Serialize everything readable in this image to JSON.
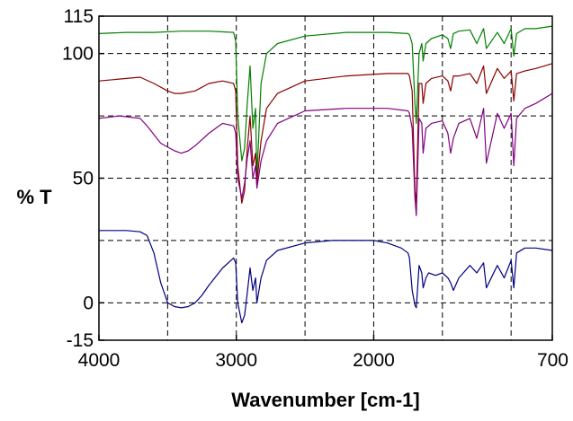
{
  "chart_data": {
    "type": "line",
    "title": "",
    "xlabel": "Wavenumber [cm-1]",
    "ylabel": "% T",
    "xlim": [
      4000,
      700
    ],
    "ylim": [
      -15,
      115
    ],
    "x_reversed": true,
    "grid": true,
    "legend": "none",
    "x_ticks": [
      4000,
      3000,
      2000,
      700
    ],
    "x_tick_labels": [
      "4000",
      "3000",
      "2000",
      "700"
    ],
    "x_gridlines": [
      3500,
      3000,
      2500,
      2000,
      1500,
      1000
    ],
    "y_ticks": [
      115,
      100,
      50,
      0,
      -15
    ],
    "y_tick_labels": [
      "115",
      "100",
      "50",
      "0",
      "-15"
    ],
    "y_gridlines": [
      100,
      75,
      50,
      25,
      0
    ],
    "series": [
      {
        "color": "#008000",
        "x": [
          4000,
          3800,
          3600,
          3400,
          3200,
          3020,
          3005,
          2990,
          2960,
          2940,
          2920,
          2900,
          2880,
          2860,
          2850,
          2820,
          2780,
          2700,
          2500,
          2200,
          1900,
          1750,
          1740,
          1720,
          1700,
          1690,
          1670,
          1650,
          1640,
          1620,
          1580,
          1500,
          1460,
          1440,
          1420,
          1380,
          1300,
          1250,
          1200,
          1180,
          1100,
          1050,
          1000,
          980,
          960,
          900,
          820,
          700
        ],
        "y": [
          108,
          108.5,
          108.5,
          109,
          109,
          108.5,
          105,
          75,
          57,
          62,
          80,
          95,
          70,
          78,
          50,
          88,
          100,
          104,
          107,
          108.5,
          108.5,
          108,
          107.5,
          104,
          80,
          72,
          100,
          104,
          97,
          104,
          106,
          107.5,
          106,
          102,
          108,
          109,
          109.5,
          104,
          110,
          102,
          108.5,
          104,
          110,
          99,
          108,
          110,
          110,
          111
        ]
      },
      {
        "color": "#8b0000",
        "x": [
          4000,
          3800,
          3700,
          3600,
          3500,
          3450,
          3400,
          3300,
          3200,
          3100,
          3020,
          3005,
          2990,
          2960,
          2940,
          2920,
          2900,
          2880,
          2860,
          2850,
          2820,
          2780,
          2700,
          2500,
          2200,
          1900,
          1750,
          1740,
          1720,
          1700,
          1690,
          1670,
          1650,
          1640,
          1620,
          1580,
          1500,
          1460,
          1440,
          1420,
          1380,
          1300,
          1250,
          1200,
          1180,
          1100,
          1050,
          1000,
          980,
          960,
          900,
          820,
          700
        ],
        "y": [
          89,
          90,
          90.5,
          88,
          85,
          84,
          84,
          85,
          88,
          89,
          88,
          85,
          55,
          40,
          45,
          62,
          75,
          55,
          60,
          48,
          65,
          78,
          84,
          89,
          91,
          92,
          92,
          91,
          85,
          45,
          40,
          88,
          88,
          80,
          88,
          90,
          91,
          89,
          85,
          91,
          91,
          92,
          88,
          95,
          84,
          94,
          90,
          93,
          81,
          92,
          93,
          94,
          96
        ]
      },
      {
        "color": "#800080",
        "x": [
          4000,
          3850,
          3700,
          3650,
          3550,
          3450,
          3400,
          3350,
          3300,
          3200,
          3100,
          3020,
          3005,
          2990,
          2960,
          2940,
          2920,
          2900,
          2880,
          2860,
          2850,
          2820,
          2780,
          2700,
          2500,
          2200,
          1900,
          1750,
          1740,
          1720,
          1700,
          1690,
          1670,
          1650,
          1640,
          1620,
          1580,
          1500,
          1460,
          1440,
          1420,
          1380,
          1300,
          1250,
          1200,
          1180,
          1100,
          1050,
          1000,
          980,
          960,
          900,
          820,
          700
        ],
        "y": [
          74,
          75,
          74,
          71,
          64,
          61,
          60,
          61,
          63,
          68,
          72,
          71,
          68,
          50,
          42,
          48,
          58,
          65,
          50,
          55,
          46,
          57,
          65,
          72,
          77,
          78,
          78,
          77,
          76,
          70,
          42,
          35,
          74,
          72,
          60,
          70,
          72,
          73,
          68,
          60,
          66,
          72,
          74,
          66,
          78,
          56,
          76,
          70,
          76,
          55,
          74,
          78,
          80,
          84
        ]
      },
      {
        "color": "#000080",
        "x": [
          4000,
          3800,
          3700,
          3650,
          3600,
          3550,
          3500,
          3450,
          3400,
          3350,
          3300,
          3250,
          3200,
          3100,
          3020,
          3005,
          2990,
          2960,
          2940,
          2920,
          2900,
          2880,
          2860,
          2850,
          2820,
          2780,
          2700,
          2500,
          2300,
          2200,
          2000,
          1900,
          1800,
          1750,
          1740,
          1720,
          1700,
          1690,
          1670,
          1650,
          1640,
          1620,
          1600,
          1550,
          1500,
          1460,
          1440,
          1420,
          1380,
          1300,
          1250,
          1200,
          1180,
          1100,
          1050,
          1000,
          980,
          960,
          900,
          820,
          700
        ],
        "y": [
          29,
          29,
          28.5,
          27,
          20,
          8,
          0,
          -1.5,
          -2,
          -1.5,
          0,
          3,
          7,
          14,
          18,
          16,
          0,
          -8,
          -5,
          4,
          14,
          5,
          10,
          0,
          10,
          17,
          21,
          24,
          25,
          25,
          25,
          24,
          22,
          20,
          18,
          5,
          -1,
          -2,
          15,
          12,
          6,
          10,
          12,
          11,
          12,
          10,
          8,
          5,
          10,
          15,
          12,
          16,
          6,
          15,
          10,
          17,
          6,
          20,
          22,
          22,
          21
        ]
      }
    ]
  }
}
